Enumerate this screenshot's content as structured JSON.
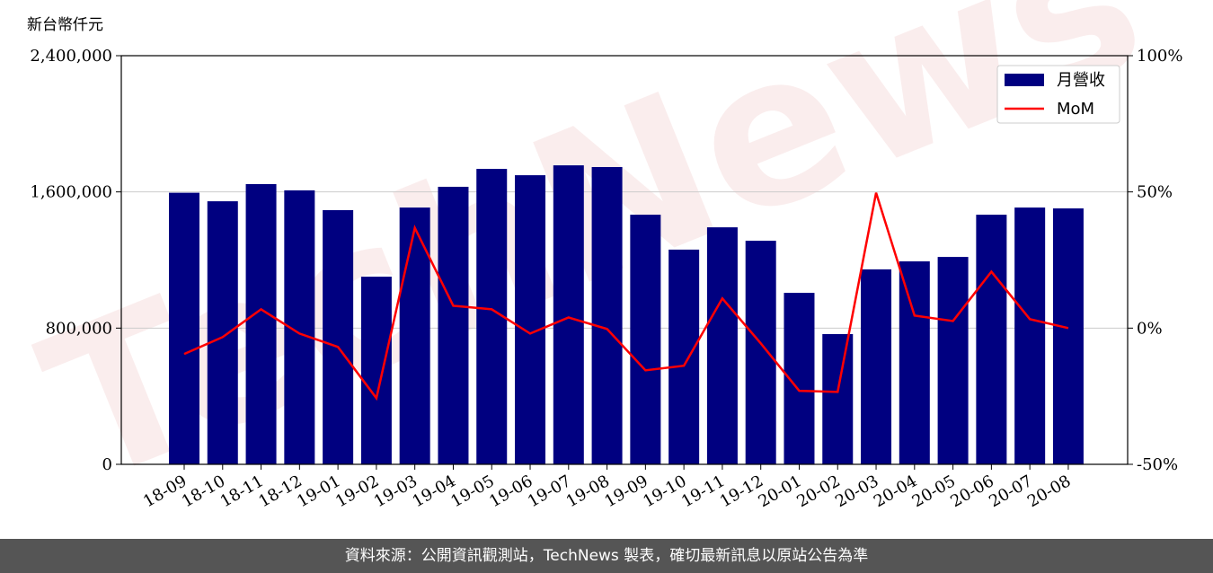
{
  "chart_data": {
    "type": "bar_line",
    "y_label": "新台幣仟元",
    "watermark": "TechNews",
    "categories": [
      "18-09",
      "18-10",
      "18-11",
      "18-12",
      "19-01",
      "19-02",
      "19-03",
      "19-04",
      "19-05",
      "19-06",
      "19-07",
      "19-08",
      "19-09",
      "19-10",
      "19-11",
      "19-12",
      "20-01",
      "20-02",
      "20-03",
      "20-04",
      "20-05",
      "20-06",
      "20-07",
      "20-08"
    ],
    "series": [
      {
        "name": "月營收",
        "color": "#000080",
        "type": "bar",
        "values": [
          1595000,
          1545000,
          1646000,
          1609000,
          1493000,
          1102000,
          1508000,
          1630000,
          1735000,
          1698000,
          1756000,
          1746000,
          1466000,
          1261000,
          1392000,
          1313000,
          1007000,
          765000,
          1145000,
          1192000,
          1218000,
          1466000,
          1508000,
          1503000
        ]
      },
      {
        "name": "MoM",
        "color": "#ff0000",
        "type": "line",
        "axis": "y2",
        "values": [
          -9.5,
          -3.3,
          6.9,
          -2.0,
          -6.9,
          -25.7,
          36.8,
          8.2,
          6.9,
          -2.0,
          3.9,
          -0.3,
          -15.5,
          -13.8,
          10.9,
          -5.6,
          -23.0,
          -23.4,
          49.7,
          4.6,
          2.6,
          20.7,
          3.3,
          0
        ]
      }
    ],
    "ylim": [
      0,
      2400000
    ],
    "yticks": [
      0,
      {
        "value": 800000,
        "label": "800,000"
      },
      {
        "value": 1600000,
        "label": "1,600,000"
      },
      {
        "value": 2400000,
        "label": "2,400,000"
      }
    ],
    "y2lim": [
      -50,
      100
    ],
    "y2ticks": [
      {
        "value": -50,
        "label": "-50%"
      },
      {
        "value": 0,
        "label": "0%"
      },
      {
        "value": 50,
        "label": "50%"
      },
      {
        "value": 100,
        "label": "100%"
      }
    ],
    "grid": true,
    "legend": "upper right",
    "footer": "資料來源：公開資訊觀測站，TechNews 製表，確切最新訊息以原站公告為準"
  }
}
